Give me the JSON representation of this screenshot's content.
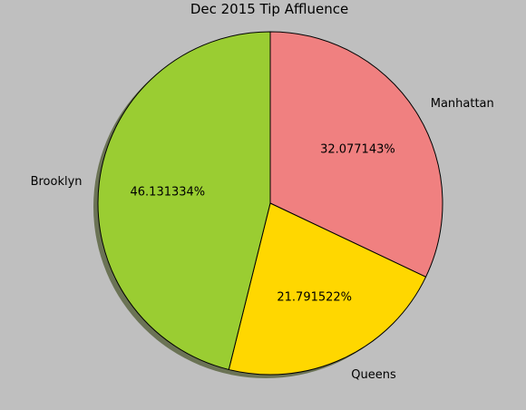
{
  "chart_data": {
    "type": "pie",
    "title": "Dec 2015 Tip Affluence",
    "categories": [
      "Manhattan",
      "Queens",
      "Brooklyn"
    ],
    "values": [
      32.077143,
      21.791522,
      46.131334
    ],
    "percent_labels": [
      "32.077143%",
      "21.791522%",
      "46.131334%"
    ],
    "colors": [
      "#f08080",
      "#ffd700",
      "#9acd32"
    ],
    "shadow": true,
    "start_angle": 90,
    "direction": "clockwise",
    "background": "#bfbfbf"
  }
}
